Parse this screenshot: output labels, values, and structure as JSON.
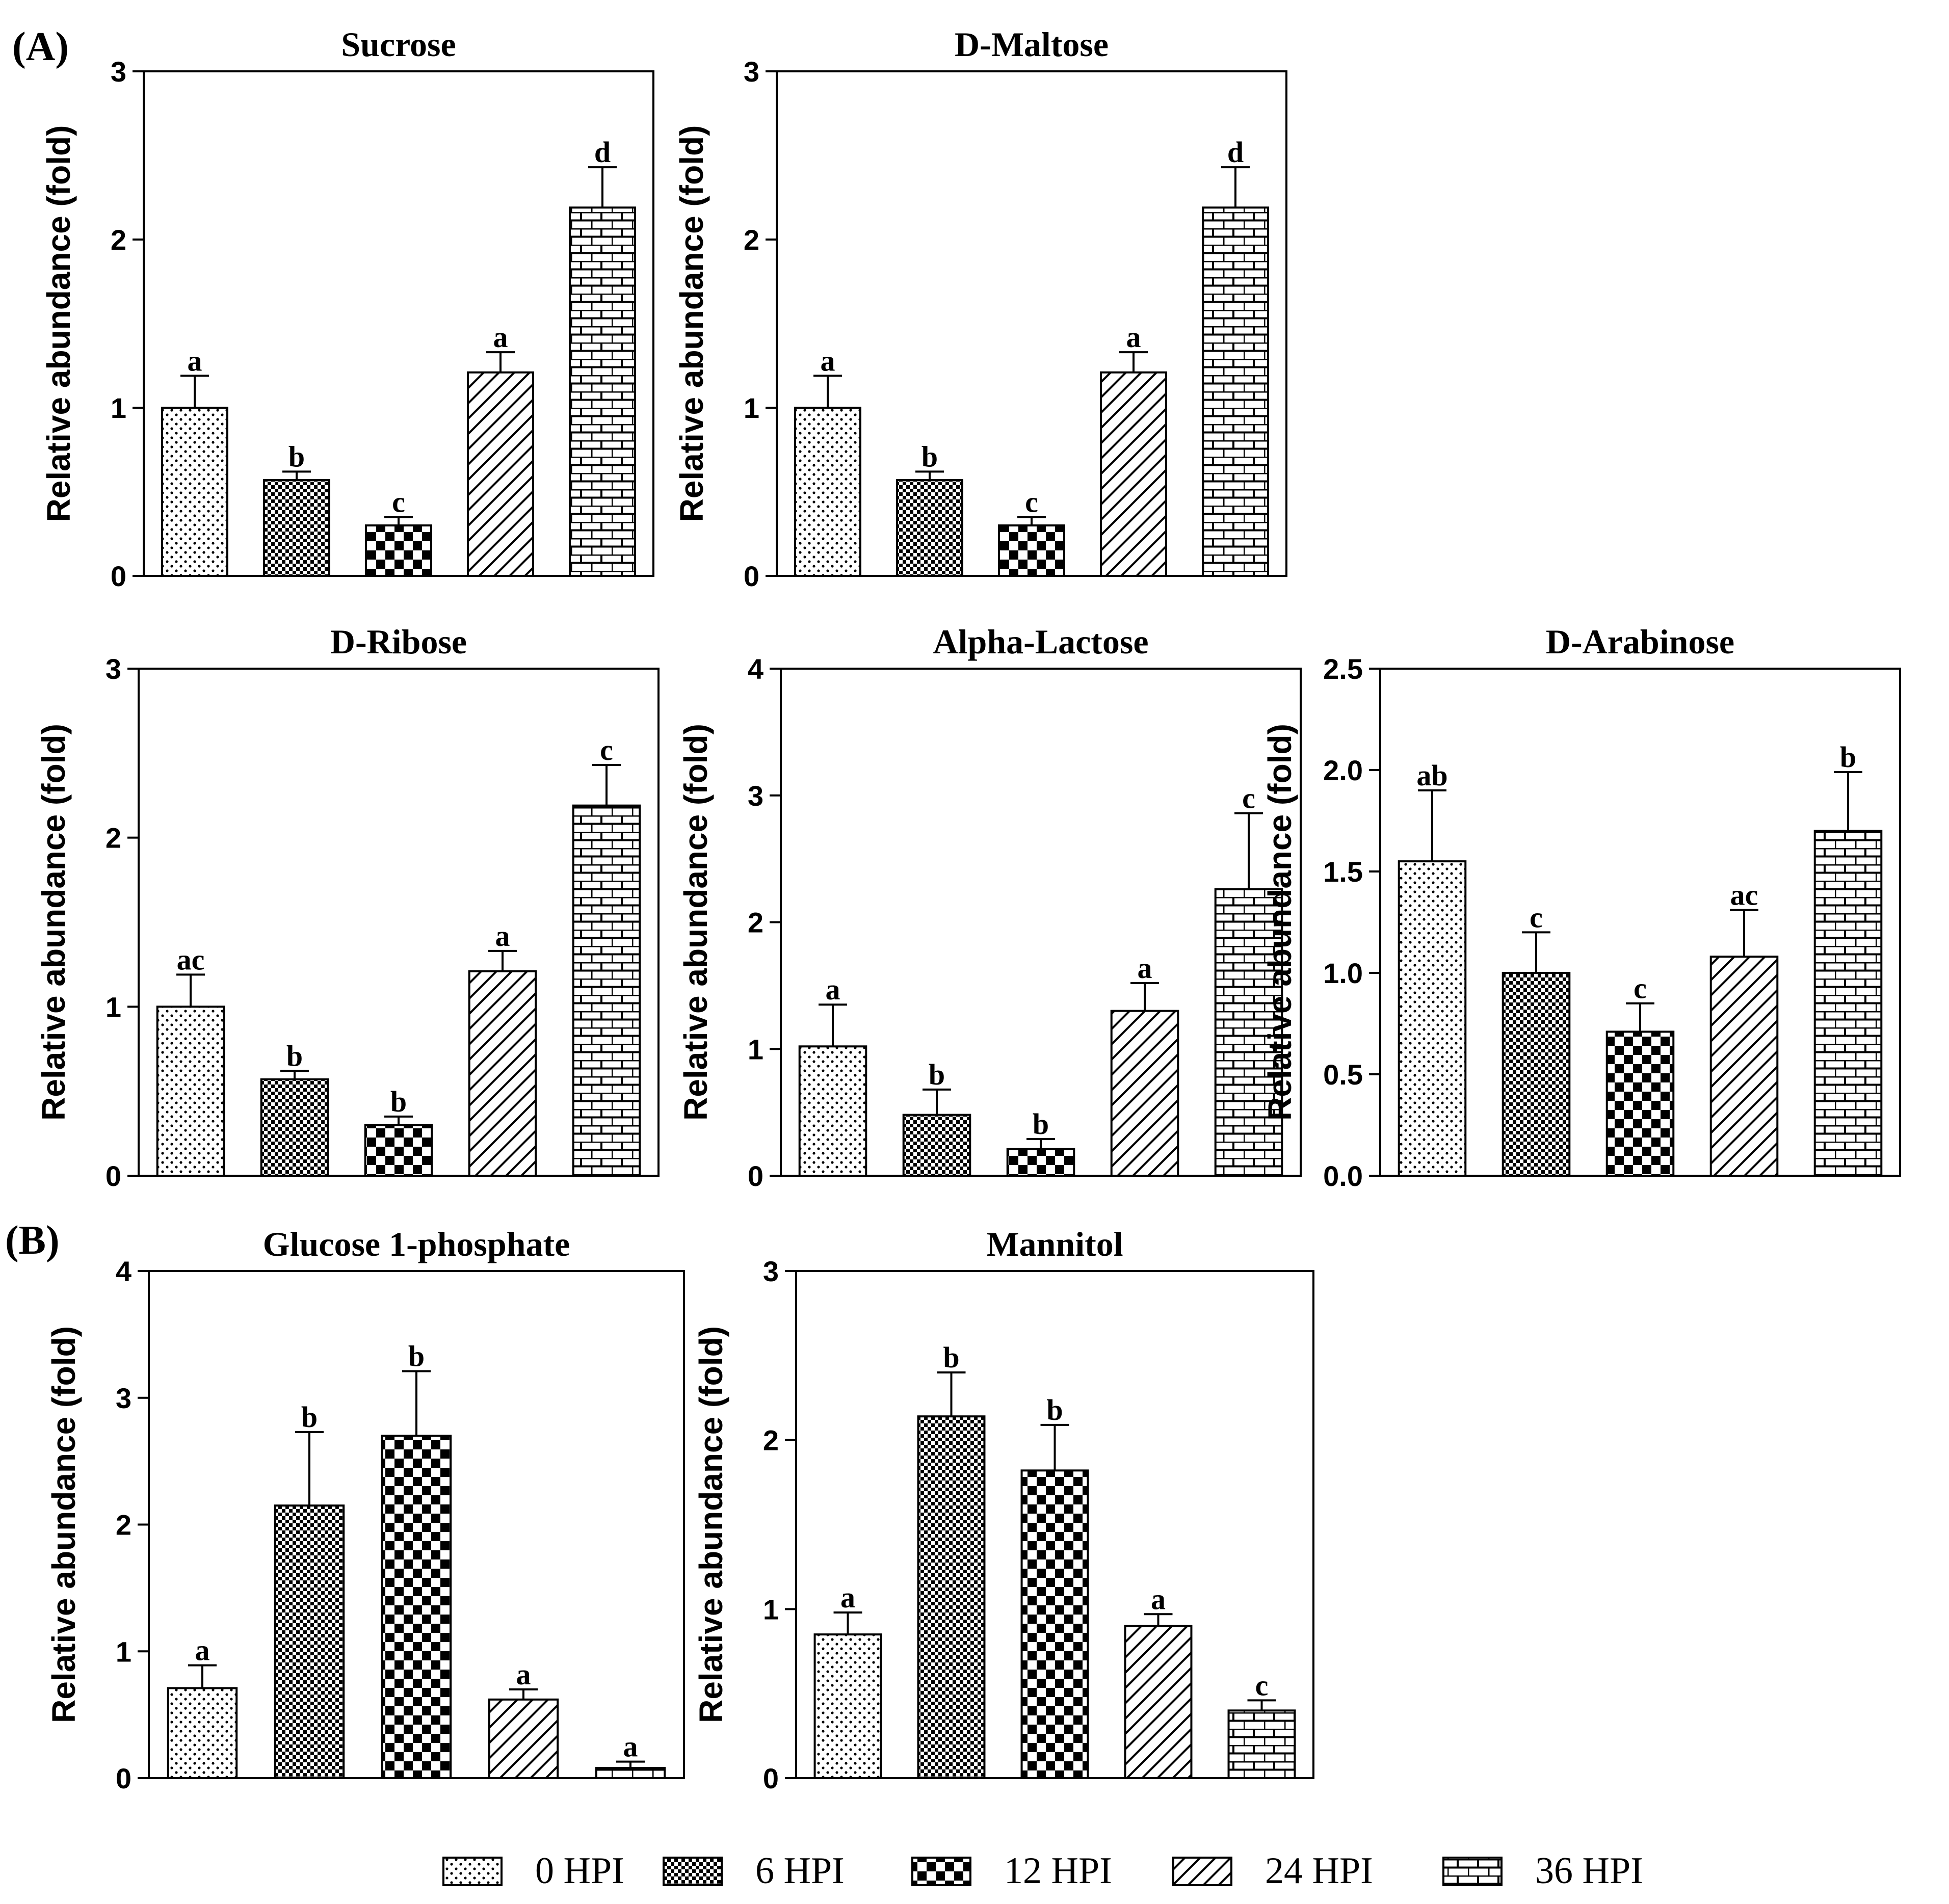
{
  "panel_labels": [
    "(A)",
    "(B)"
  ],
  "legend": [
    "0 HPI",
    "6 HPI",
    "12 HPI",
    "24 HPI",
    "36 HPI"
  ],
  "colors": {
    "ink": "#000000",
    "background": "#ffffff"
  },
  "chart_data": [
    {
      "type": "bar",
      "title": "Sucrose",
      "ylabel": "Relative abundance (fold)",
      "categories": [
        "0 HPI",
        "6 HPI",
        "12 HPI",
        "24 HPI",
        "36 HPI"
      ],
      "values": [
        1.0,
        0.57,
        0.3,
        1.21,
        2.19
      ],
      "errors": [
        0.19,
        0.05,
        0.05,
        0.12,
        0.24
      ],
      "letters": [
        "a",
        "b",
        "c",
        "a",
        "d"
      ],
      "ylim": [
        0,
        3
      ],
      "yticks": [
        "0",
        "1",
        "2",
        "3"
      ]
    },
    {
      "type": "bar",
      "title": "D-Maltose",
      "ylabel": "Relative abundance (fold)",
      "categories": [
        "0 HPI",
        "6 HPI",
        "12 HPI",
        "24 HPI",
        "36 HPI"
      ],
      "values": [
        1.0,
        0.57,
        0.3,
        1.21,
        2.19
      ],
      "errors": [
        0.19,
        0.05,
        0.05,
        0.12,
        0.24
      ],
      "letters": [
        "a",
        "b",
        "c",
        "a",
        "d"
      ],
      "ylim": [
        0,
        3
      ],
      "yticks": [
        "0",
        "1",
        "2",
        "3"
      ]
    },
    {
      "type": "bar",
      "title": "D-Ribose",
      "ylabel": "Relative abundance (fold)",
      "categories": [
        "0 HPI",
        "6 HPI",
        "12 HPI",
        "24 HPI",
        "36 HPI"
      ],
      "values": [
        1.0,
        0.57,
        0.3,
        1.21,
        2.19
      ],
      "errors": [
        0.19,
        0.05,
        0.05,
        0.12,
        0.24
      ],
      "letters": [
        "ac",
        "b",
        "b",
        "a",
        "c"
      ],
      "ylim": [
        0,
        3
      ],
      "yticks": [
        "0",
        "1",
        "2",
        "3"
      ]
    },
    {
      "type": "bar",
      "title": "Alpha-Lactose",
      "ylabel": "Relative abundance (fold)",
      "categories": [
        "0 HPI",
        "6 HPI",
        "12 HPI",
        "24 HPI",
        "36 HPI"
      ],
      "values": [
        1.02,
        0.48,
        0.21,
        1.3,
        2.26
      ],
      "errors": [
        0.33,
        0.2,
        0.08,
        0.22,
        0.6
      ],
      "letters": [
        "a",
        "b",
        "b",
        "a",
        "c"
      ],
      "ylim": [
        0,
        4
      ],
      "yticks": [
        "0",
        "1",
        "2",
        "3",
        "4"
      ]
    },
    {
      "type": "bar",
      "title": "D-Arabinose",
      "ylabel": "Relative abundance (fold)",
      "categories": [
        "0 HPI",
        "6 HPI",
        "12 HPI",
        "24 HPI",
        "36 HPI"
      ],
      "values": [
        1.55,
        1.0,
        0.71,
        1.08,
        1.7
      ],
      "errors": [
        0.35,
        0.2,
        0.14,
        0.23,
        0.29
      ],
      "letters": [
        "ab",
        "c",
        "c",
        "ac",
        "b"
      ],
      "ylim": [
        0,
        2.5
      ],
      "yticks": [
        "0.0",
        "0.5",
        "1.0",
        "1.5",
        "2.0",
        "2.5"
      ]
    },
    {
      "type": "bar",
      "title": "Glucose 1-phosphate",
      "ylabel": "Relative abundance (fold)",
      "categories": [
        "0 HPI",
        "6 HPI",
        "12 HPI",
        "24 HPI",
        "36 HPI"
      ],
      "values": [
        0.71,
        2.15,
        2.7,
        0.62,
        0.08
      ],
      "errors": [
        0.18,
        0.58,
        0.51,
        0.08,
        0.05
      ],
      "letters": [
        "a",
        "b",
        "b",
        "a",
        "a"
      ],
      "ylim": [
        0,
        4
      ],
      "yticks": [
        "0",
        "1",
        "2",
        "3",
        "4"
      ]
    },
    {
      "type": "bar",
      "title": "Mannitol",
      "ylabel": "Relative abundance (fold)",
      "categories": [
        "0 HPI",
        "6 HPI",
        "12 HPI",
        "24 HPI",
        "36 HPI"
      ],
      "values": [
        0.85,
        2.14,
        1.82,
        0.9,
        0.4
      ],
      "errors": [
        0.13,
        0.26,
        0.27,
        0.07,
        0.06
      ],
      "letters": [
        "a",
        "b",
        "b",
        "a",
        "c"
      ],
      "ylim": [
        0,
        3
      ],
      "yticks": [
        "0",
        "1",
        "2",
        "3"
      ]
    }
  ]
}
